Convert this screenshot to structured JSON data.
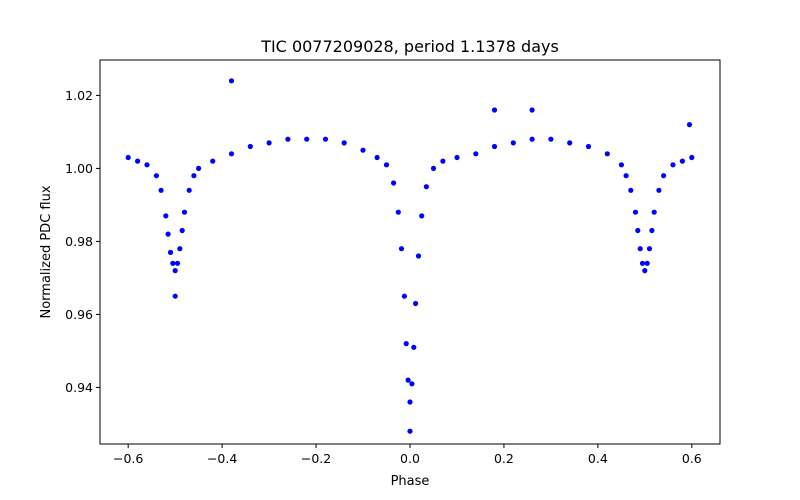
{
  "chart_data": {
    "type": "scatter",
    "title": "TIC 0077209028, period 1.1378 days",
    "xlabel": "Phase",
    "ylabel": "Normalized PDC flux",
    "xlim": [
      -0.66,
      0.66
    ],
    "ylim": [
      0.9245,
      1.0297
    ],
    "xticks": [
      -0.6,
      -0.4,
      -0.2,
      0.0,
      0.2,
      0.4,
      0.6
    ],
    "xtick_labels": [
      "−0.6",
      "−0.4",
      "−0.2",
      "0.0",
      "0.2",
      "0.4",
      "0.6"
    ],
    "yticks": [
      0.94,
      0.96,
      0.98,
      1.0,
      1.02
    ],
    "ytick_labels": [
      "0.94",
      "0.96",
      "0.98",
      "1.00",
      "1.02"
    ],
    "grid": false,
    "marker_color": "#0000ff",
    "series": [
      {
        "x": [
          -0.6,
          -0.58,
          -0.56,
          -0.54,
          -0.53,
          -0.52,
          -0.515,
          -0.51,
          -0.505,
          -0.5,
          -0.495,
          -0.49,
          -0.485,
          -0.48,
          -0.47,
          -0.46,
          -0.45,
          -0.42,
          -0.38,
          -0.34,
          -0.3,
          -0.26,
          -0.22,
          -0.18,
          -0.14,
          -0.1,
          -0.07,
          -0.05,
          -0.035,
          -0.025,
          -0.018,
          -0.012,
          -0.008,
          -0.004,
          0.0,
          0.004,
          0.008,
          0.012,
          0.018,
          0.025,
          0.035,
          0.05,
          0.07,
          0.1,
          0.14,
          0.18,
          0.22,
          0.26,
          0.3,
          0.34,
          0.38,
          0.42,
          0.45,
          0.46,
          0.47,
          0.48,
          0.485,
          0.49,
          0.495,
          0.5,
          0.505,
          0.51,
          0.515,
          0.52,
          0.53,
          0.54,
          0.56,
          0.58,
          0.6,
          -0.38,
          0.26,
          0.18,
          0.595,
          -0.5,
          0.0
        ],
        "y": [
          1.003,
          1.002,
          1.001,
          0.998,
          0.994,
          0.987,
          0.982,
          0.977,
          0.974,
          0.972,
          0.974,
          0.978,
          0.983,
          0.988,
          0.994,
          0.998,
          1.0,
          1.002,
          1.004,
          1.006,
          1.007,
          1.008,
          1.008,
          1.008,
          1.007,
          1.005,
          1.003,
          1.001,
          0.996,
          0.988,
          0.978,
          0.965,
          0.952,
          0.942,
          0.936,
          0.941,
          0.951,
          0.963,
          0.976,
          0.987,
          0.995,
          1.0,
          1.002,
          1.003,
          1.004,
          1.006,
          1.007,
          1.008,
          1.008,
          1.007,
          1.006,
          1.004,
          1.001,
          0.998,
          0.994,
          0.988,
          0.983,
          0.978,
          0.974,
          0.972,
          0.974,
          0.978,
          0.983,
          0.988,
          0.994,
          0.998,
          1.001,
          1.002,
          1.003,
          1.024,
          1.016,
          1.016,
          1.012,
          0.965,
          0.928
        ]
      }
    ]
  }
}
